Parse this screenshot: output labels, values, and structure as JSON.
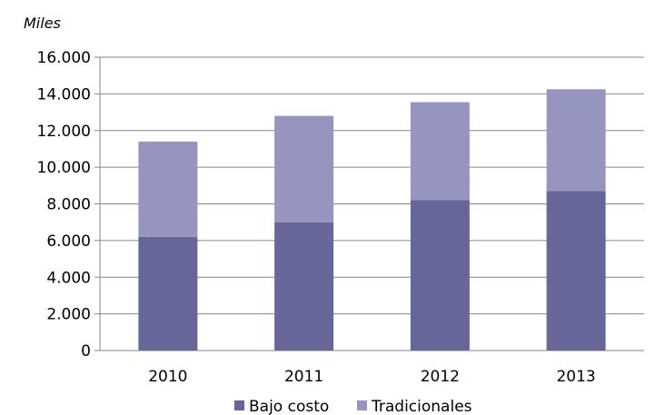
{
  "chart_data": {
    "type": "bar",
    "stacked": true,
    "unit_label": "Miles",
    "categories": [
      "2010",
      "2011",
      "2012",
      "2013"
    ],
    "series": [
      {
        "name": "Bajo costo",
        "values": [
          6200,
          7000,
          8200,
          8700
        ],
        "color": "#666699"
      },
      {
        "name": "Tradicionales",
        "values": [
          5200,
          5800,
          5350,
          5550
        ],
        "color": "#9595c0"
      }
    ],
    "ylim": [
      0,
      16000
    ],
    "yticks": [
      0,
      2000,
      4000,
      6000,
      8000,
      10000,
      12000,
      14000,
      16000
    ],
    "ytick_labels": [
      "0",
      "2.000",
      "4.000",
      "6.000",
      "8.000",
      "10.000",
      "12.000",
      "14.000",
      "16.000"
    ],
    "grid": true,
    "legend_position": "bottom",
    "grid_color": "#868686"
  }
}
